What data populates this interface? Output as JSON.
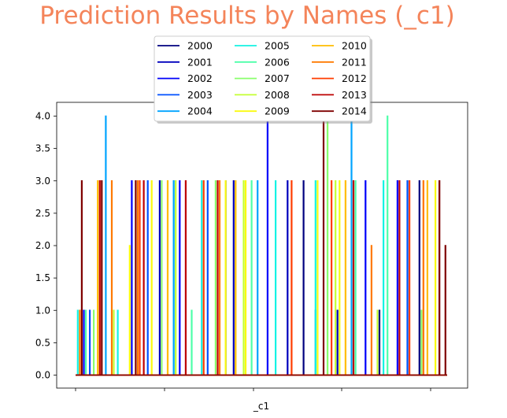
{
  "chart_data": {
    "type": "line",
    "title": "Prediction Results by Names (_c1)",
    "xlabel": "_c1",
    "ylabel": "",
    "ylim": [
      0,
      4
    ],
    "yticks": [
      "0.0",
      "0.5",
      "1.0",
      "1.5",
      "2.0",
      "2.5",
      "3.0",
      "3.5",
      "4.0"
    ],
    "grid": false,
    "legend_placement": "upper center",
    "title_color": "#f4845a",
    "series": [
      {
        "name": "2000",
        "color": "#00007f",
        "spikes": [
          [
            3.75,
            3
          ],
          [
            5.7,
            3
          ],
          [
            7.6,
            1
          ],
          [
            8.6,
            3
          ]
        ]
      },
      {
        "name": "2001",
        "color": "#0000bd",
        "spikes": [
          [
            2.1,
            3
          ],
          [
            3.95,
            3
          ],
          [
            5.3,
            3
          ],
          [
            6.55,
            1
          ]
        ]
      },
      {
        "name": "2002",
        "color": "#0000fa",
        "spikes": [
          [
            0.2,
            1
          ],
          [
            1.4,
            3
          ],
          [
            2.6,
            3
          ],
          [
            4.8,
            4.3
          ],
          [
            7.25,
            3
          ],
          [
            8.05,
            3
          ]
        ]
      },
      {
        "name": "2003",
        "color": "#0050ff",
        "spikes": [
          [
            0.35,
            1
          ],
          [
            1.8,
            3
          ],
          [
            3.3,
            3
          ],
          [
            6.0,
            1
          ],
          [
            8.3,
            3
          ]
        ]
      },
      {
        "name": "2004",
        "color": "#00a4ff",
        "spikes": [
          [
            0.75,
            4
          ],
          [
            2.45,
            3
          ],
          [
            4.55,
            3
          ],
          [
            6.9,
            4.3
          ]
        ]
      },
      {
        "name": "2005",
        "color": "#14f3e3",
        "spikes": [
          [
            0.05,
            1
          ],
          [
            1.05,
            1
          ],
          [
            3.15,
            3
          ],
          [
            5.0,
            3
          ],
          [
            6.0,
            3
          ],
          [
            7.7,
            3
          ]
        ]
      },
      {
        "name": "2006",
        "color": "#4dffa9",
        "spikes": [
          [
            0.25,
            1
          ],
          [
            2.9,
            1
          ],
          [
            4.4,
            3
          ],
          [
            7.0,
            3
          ],
          [
            7.8,
            4
          ]
        ]
      },
      {
        "name": "2007",
        "color": "#89ff6d",
        "spikes": [
          [
            0.45,
            1
          ],
          [
            2.15,
            3
          ],
          [
            3.5,
            3
          ],
          [
            6.3,
            4.3
          ],
          [
            8.65,
            1
          ]
        ]
      },
      {
        "name": "2008",
        "color": "#c4ff33",
        "spikes": [
          [
            0.95,
            1
          ],
          [
            2.5,
            3
          ],
          [
            4.2,
            3
          ],
          [
            6.5,
            3
          ],
          [
            7.55,
            1
          ]
        ]
      },
      {
        "name": "2009",
        "color": "#fafa0f",
        "spikes": [
          [
            1.35,
            2
          ],
          [
            1.9,
            3
          ],
          [
            3.75,
            3
          ],
          [
            4.25,
            3
          ],
          [
            6.05,
            3
          ],
          [
            6.6,
            3
          ],
          [
            9.0,
            3
          ]
        ]
      },
      {
        "name": "2010",
        "color": "#ffbd00",
        "spikes": [
          [
            0.55,
            3
          ],
          [
            2.3,
            3
          ],
          [
            4.0,
            3
          ],
          [
            6.75,
            3
          ],
          [
            8.8,
            3
          ]
        ]
      },
      {
        "name": "2011",
        "color": "#ff7a00",
        "spikes": [
          [
            0.1,
            1
          ],
          [
            0.9,
            3
          ],
          [
            1.55,
            3
          ],
          [
            3.6,
            3
          ],
          [
            7.4,
            2
          ],
          [
            8.7,
            3
          ]
        ]
      },
      {
        "name": "2012",
        "color": "#ff3d00",
        "spikes": [
          [
            1.6,
            3
          ],
          [
            3.2,
            3
          ],
          [
            5.4,
            3
          ],
          [
            6.4,
            3
          ],
          [
            8.35,
            3
          ]
        ]
      },
      {
        "name": "2013",
        "color": "#bd0000",
        "spikes": [
          [
            0.6,
            3
          ],
          [
            1.7,
            3
          ],
          [
            2.75,
            3
          ],
          [
            3.55,
            3
          ],
          [
            6.95,
            3
          ],
          [
            8.1,
            3
          ]
        ]
      },
      {
        "name": "2014",
        "color": "#7f0000",
        "spikes": [
          [
            0.15,
            3
          ],
          [
            0.65,
            3
          ],
          [
            1.5,
            3
          ],
          [
            6.2,
            4.3
          ],
          [
            9.1,
            3
          ],
          [
            9.25,
            2
          ]
        ]
      }
    ]
  }
}
